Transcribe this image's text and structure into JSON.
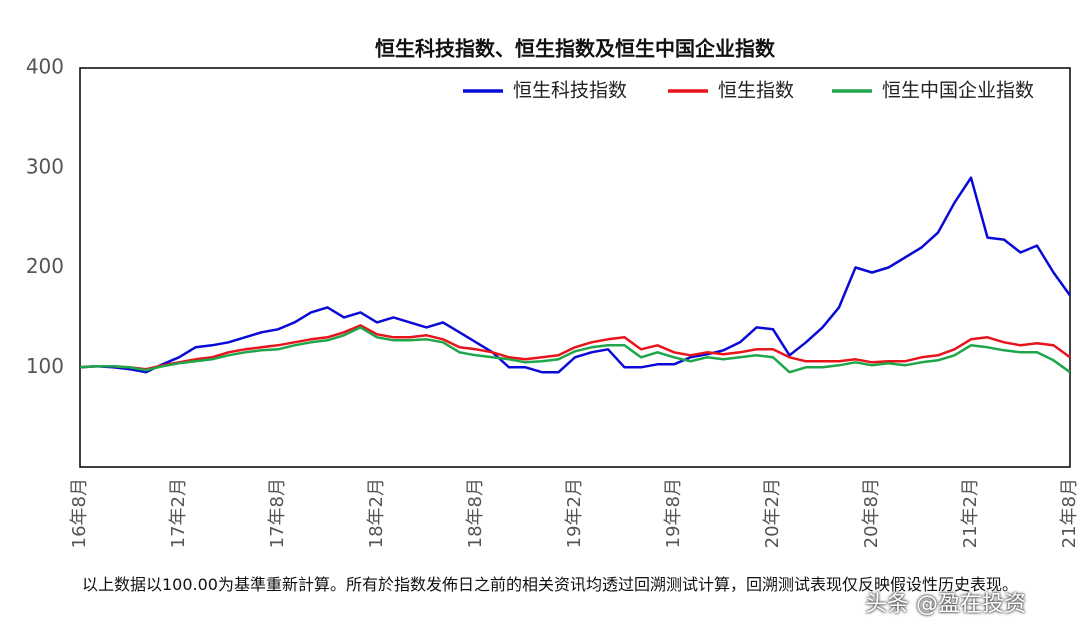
{
  "chart_data": {
    "type": "line",
    "title": "恒生科技指数、恒生指数及恒生中国企业指数",
    "categories": [
      "16年8月",
      null,
      null,
      null,
      null,
      null,
      "17年2月",
      null,
      null,
      null,
      null,
      null,
      "17年8月",
      null,
      null,
      null,
      null,
      null,
      "18年2月",
      null,
      null,
      null,
      null,
      null,
      "18年8月",
      null,
      null,
      null,
      null,
      null,
      "19年2月",
      null,
      null,
      null,
      null,
      null,
      "19年8月",
      null,
      null,
      null,
      null,
      null,
      "20年2月",
      null,
      null,
      null,
      null,
      null,
      "20年8月",
      null,
      null,
      null,
      null,
      null,
      "21年2月",
      null,
      null,
      null,
      null,
      null,
      "21年8月"
    ],
    "series": [
      {
        "name": "恒生科技指数",
        "color": "#0a0ad8",
        "values": [
          100,
          101,
          100,
          98,
          95,
          103,
          110,
          120,
          122,
          125,
          130,
          135,
          138,
          145,
          155,
          160,
          150,
          155,
          145,
          150,
          145,
          140,
          145,
          135,
          125,
          115,
          100,
          100,
          95,
          95,
          110,
          115,
          118,
          100,
          100,
          103,
          103,
          110,
          113,
          117,
          125,
          140,
          138,
          112,
          125,
          140,
          160,
          200,
          195,
          200,
          210,
          220,
          235,
          265,
          290,
          230,
          228,
          215,
          222,
          195,
          172
        ]
      },
      {
        "name": "恒生指数",
        "color": "#e8141c",
        "values": [
          100,
          101,
          101,
          100,
          98,
          102,
          105,
          108,
          110,
          115,
          118,
          120,
          122,
          125,
          128,
          130,
          135,
          142,
          133,
          130,
          130,
          132,
          128,
          120,
          118,
          115,
          110,
          108,
          110,
          112,
          120,
          125,
          128,
          130,
          118,
          122,
          115,
          112,
          115,
          113,
          115,
          118,
          118,
          110,
          106,
          106,
          106,
          108,
          105,
          106,
          106,
          110,
          112,
          118,
          128,
          130,
          125,
          122,
          124,
          122,
          110
        ]
      },
      {
        "name": "恒生中国企业指数",
        "color": "#1fa64a",
        "values": [
          100,
          101,
          101,
          100,
          97,
          101,
          104,
          106,
          108,
          112,
          115,
          117,
          118,
          122,
          125,
          127,
          132,
          140,
          130,
          127,
          127,
          128,
          125,
          115,
          112,
          110,
          108,
          105,
          106,
          108,
          116,
          120,
          122,
          122,
          110,
          115,
          110,
          106,
          110,
          108,
          110,
          112,
          110,
          95,
          100,
          100,
          102,
          105,
          102,
          104,
          102,
          105,
          107,
          112,
          122,
          120,
          117,
          115,
          115,
          107,
          95
        ]
      }
    ],
    "ylim": [
      0,
      400
    ],
    "yticks": [
      100,
      200,
      300,
      400
    ],
    "grid": false,
    "legend": "top-right",
    "footnote": "以上数据以100.00为基準重新計算。所有於指数发佈日之前的相关资讯均透过回溯测试计算，回溯测试表现仅反映假设性历史表现。",
    "watermark": "头条 @盈在投资"
  }
}
